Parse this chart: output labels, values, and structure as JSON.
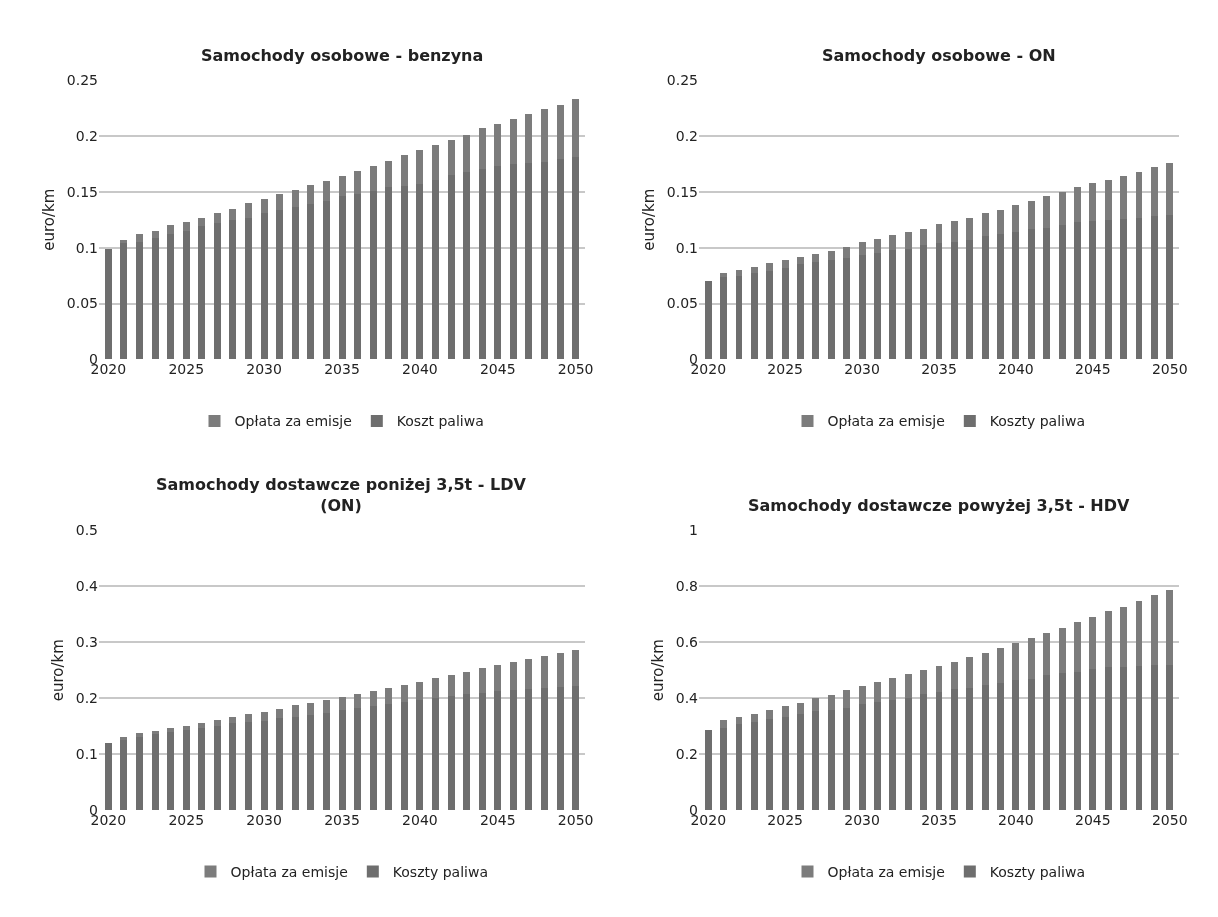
{
  "chart_data": [
    {
      "type": "bar",
      "stacked": true,
      "title": "Samochody osobowe - benzyna",
      "ylabel": "euro/km",
      "grid": "y",
      "legend": "bottom",
      "x": [
        2020,
        2021,
        2022,
        2023,
        2024,
        2025,
        2026,
        2027,
        2028,
        2029,
        2030,
        2031,
        2032,
        2033,
        2034,
        2035,
        2036,
        2037,
        2038,
        2039,
        2040,
        2041,
        2042,
        2043,
        2044,
        2045,
        2046,
        2047,
        2048,
        2049,
        2050
      ],
      "xlim": [
        2019.4,
        2050.6
      ],
      "xticks": [
        2020,
        2025,
        2030,
        2035,
        2040,
        2045,
        2050
      ],
      "ylim": [
        0,
        0.25
      ],
      "yticks": [
        0,
        0.05,
        0.1,
        0.15,
        0.2,
        0.25
      ],
      "series": [
        {
          "name": "Koszt paliwa",
          "color": "#6e6e6e",
          "values": [
            0.099,
            0.104,
            0.105,
            0.109,
            0.112,
            0.115,
            0.119,
            0.122,
            0.125,
            0.127,
            0.131,
            0.134,
            0.136,
            0.139,
            0.142,
            0.146,
            0.148,
            0.151,
            0.154,
            0.155,
            0.157,
            0.161,
            0.165,
            0.168,
            0.17,
            0.173,
            0.175,
            0.176,
            0.177,
            0.179,
            0.181
          ]
        },
        {
          "name": "Opłata za emisje",
          "color": "#7c7c7c",
          "values": [
            0,
            0.003,
            0.007,
            0.006,
            0.008,
            0.008,
            0.008,
            0.009,
            0.01,
            0.013,
            0.013,
            0.014,
            0.016,
            0.017,
            0.018,
            0.018,
            0.021,
            0.022,
            0.024,
            0.028,
            0.03,
            0.031,
            0.031,
            0.033,
            0.037,
            0.038,
            0.04,
            0.044,
            0.047,
            0.049,
            0.052
          ]
        }
      ]
    },
    {
      "type": "bar",
      "stacked": true,
      "title": "Samochody osobowe - ON",
      "ylabel": "euro/km",
      "grid": "y",
      "legend": "bottom",
      "x": [
        2020,
        2021,
        2022,
        2023,
        2024,
        2025,
        2026,
        2027,
        2028,
        2029,
        2030,
        2031,
        2032,
        2033,
        2034,
        2035,
        2036,
        2037,
        2038,
        2039,
        2040,
        2041,
        2042,
        2043,
        2044,
        2045,
        2046,
        2047,
        2048,
        2049,
        2050
      ],
      "xlim": [
        2019.4,
        2050.6
      ],
      "xticks": [
        2020,
        2025,
        2030,
        2035,
        2040,
        2045,
        2050
      ],
      "ylim": [
        0,
        0.25
      ],
      "yticks": [
        0,
        0.05,
        0.1,
        0.15,
        0.2,
        0.25
      ],
      "series": [
        {
          "name": "Koszty paliwa",
          "color": "#6e6e6e",
          "values": [
            0.07,
            0.074,
            0.075,
            0.077,
            0.079,
            0.082,
            0.085,
            0.087,
            0.089,
            0.091,
            0.093,
            0.095,
            0.098,
            0.099,
            0.102,
            0.104,
            0.105,
            0.107,
            0.11,
            0.112,
            0.114,
            0.117,
            0.118,
            0.12,
            0.123,
            0.124,
            0.125,
            0.126,
            0.127,
            0.128,
            0.129
          ]
        },
        {
          "name": "Opłata za emisje",
          "color": "#7c7c7c",
          "values": [
            0,
            0.003,
            0.005,
            0.006,
            0.007,
            0.007,
            0.007,
            0.007,
            0.008,
            0.01,
            0.012,
            0.013,
            0.013,
            0.015,
            0.015,
            0.017,
            0.019,
            0.02,
            0.021,
            0.022,
            0.024,
            0.025,
            0.028,
            0.03,
            0.031,
            0.034,
            0.036,
            0.038,
            0.041,
            0.044,
            0.047
          ]
        }
      ]
    },
    {
      "type": "bar",
      "stacked": true,
      "title": "Samochody dostawcze poniżej 3,5t - LDV\n(ON)",
      "ylabel": "euro/km",
      "grid": "y",
      "legend": "bottom",
      "x": [
        2020,
        2021,
        2022,
        2023,
        2024,
        2025,
        2026,
        2027,
        2028,
        2029,
        2030,
        2031,
        2032,
        2033,
        2034,
        2035,
        2036,
        2037,
        2038,
        2039,
        2040,
        2041,
        2042,
        2043,
        2044,
        2045,
        2046,
        2047,
        2048,
        2049,
        2050
      ],
      "xlim": [
        2019.4,
        2050.6
      ],
      "xticks": [
        2020,
        2025,
        2030,
        2035,
        2040,
        2045,
        2050
      ],
      "ylim": [
        0,
        0.5
      ],
      "yticks": [
        0,
        0.1,
        0.2,
        0.3,
        0.4,
        0.5
      ],
      "series": [
        {
          "name": "Koszty paliwa",
          "color": "#6e6e6e",
          "values": [
            0.12,
            0.127,
            0.13,
            0.135,
            0.139,
            0.143,
            0.147,
            0.151,
            0.155,
            0.158,
            0.16,
            0.164,
            0.167,
            0.17,
            0.174,
            0.178,
            0.182,
            0.186,
            0.19,
            0.194,
            0.197,
            0.2,
            0.203,
            0.207,
            0.21,
            0.213,
            0.215,
            0.216,
            0.218,
            0.22,
            0.221
          ]
        },
        {
          "name": "Opłata za emisje",
          "color": "#7c7c7c",
          "values": [
            0,
            0.003,
            0.007,
            0.006,
            0.008,
            0.008,
            0.009,
            0.01,
            0.011,
            0.014,
            0.016,
            0.017,
            0.02,
            0.021,
            0.022,
            0.024,
            0.025,
            0.026,
            0.028,
            0.03,
            0.032,
            0.036,
            0.039,
            0.04,
            0.044,
            0.047,
            0.05,
            0.054,
            0.058,
            0.061,
            0.066
          ]
        }
      ]
    },
    {
      "type": "bar",
      "stacked": true,
      "title": "Samochody dostawcze powyżej 3,5t - HDV",
      "ylabel": "euro/km",
      "grid": "y",
      "legend": "bottom",
      "x": [
        2020,
        2021,
        2022,
        2023,
        2024,
        2025,
        2026,
        2027,
        2028,
        2029,
        2030,
        2031,
        2032,
        2033,
        2034,
        2035,
        2036,
        2037,
        2038,
        2039,
        2040,
        2041,
        2042,
        2043,
        2044,
        2045,
        2046,
        2047,
        2048,
        2049,
        2050
      ],
      "xlim": [
        2019.4,
        2050.6
      ],
      "xticks": [
        2020,
        2025,
        2030,
        2035,
        2040,
        2045,
        2050
      ],
      "ylim": [
        0,
        1
      ],
      "yticks": [
        0,
        0.2,
        0.4,
        0.6,
        0.8,
        1
      ],
      "series": [
        {
          "name": "Koszty paliwa",
          "color": "#6e6e6e",
          "values": [
            0.285,
            0.294,
            0.306,
            0.316,
            0.324,
            0.333,
            0.344,
            0.355,
            0.358,
            0.366,
            0.378,
            0.386,
            0.394,
            0.402,
            0.414,
            0.421,
            0.432,
            0.438,
            0.447,
            0.456,
            0.465,
            0.47,
            0.482,
            0.489,
            0.495,
            0.504,
            0.51,
            0.51,
            0.516,
            0.518,
            0.519
          ]
        },
        {
          "name": "Opłata za emisje",
          "color": "#7c7c7c",
          "values": [
            0,
            0.027,
            0.027,
            0.028,
            0.035,
            0.038,
            0.04,
            0.045,
            0.055,
            0.062,
            0.066,
            0.071,
            0.077,
            0.084,
            0.086,
            0.093,
            0.099,
            0.109,
            0.116,
            0.124,
            0.132,
            0.144,
            0.151,
            0.163,
            0.177,
            0.187,
            0.201,
            0.217,
            0.232,
            0.25,
            0.27
          ]
        }
      ]
    }
  ]
}
